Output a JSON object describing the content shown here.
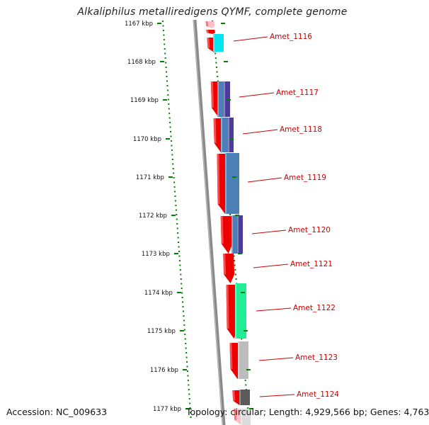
{
  "title": "Alkaliphilus metalliredigens QYMF, complete genome",
  "footer": {
    "accession_label": "Accession:",
    "accession_value": "NC_009633",
    "topology_text": "Topology: circular; Length: 4,929,566 bp; Genes: 4,763"
  },
  "kbp_ticks": [
    "1167 kbp",
    "1168 kbp",
    "1169 kbp",
    "1170 kbp",
    "1171 kbp",
    "1172 kbp",
    "1173 kbp",
    "1174 kbp",
    "1175 kbp",
    "1176 kbp",
    "1177 kbp"
  ],
  "genes": [
    "Amet_1116",
    "Amet_1117",
    "Amet_1118",
    "Amet_1119",
    "Amet_1120",
    "Amet_1121",
    "Amet_1122",
    "Amet_1123",
    "Amet_1124"
  ],
  "colors": {
    "cds": "#ee0000",
    "cds_faded": "#ffc0c8",
    "cyan": "#00e5ee",
    "steelblue": "#4a7fb8",
    "slateblue": "#4a3d9a",
    "springgreen": "#22ee99",
    "lightgray": "#bdbdbd",
    "darkgray": "#5a5a5a",
    "dots": "#008000",
    "label": "#cc0000",
    "backbone": "#8a8a8a"
  }
}
